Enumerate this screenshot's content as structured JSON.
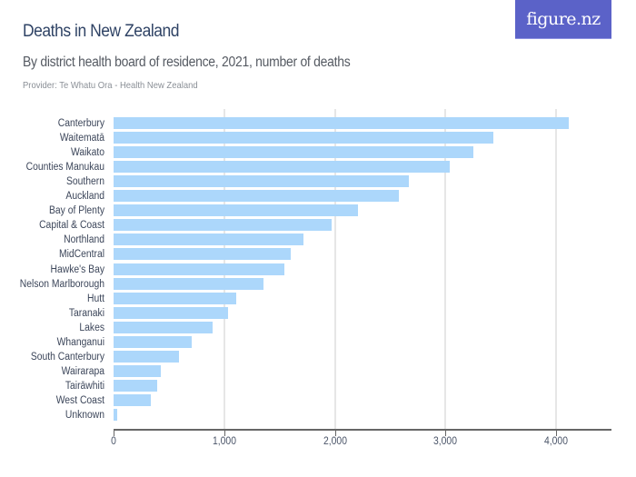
{
  "header": {
    "title": "Deaths in New Zealand",
    "subtitle": "By district health board of residence, 2021, number of deaths",
    "provider": "Provider: Te Whatu Ora - Health New Zealand",
    "logo": "figure.nz"
  },
  "colors": {
    "bar": "#acd7fb",
    "title": "#2f4365",
    "logo_bg": "#5b62c8"
  },
  "axis": {
    "ticks": [
      "0",
      "1,000",
      "2,000",
      "3,000",
      "4,000"
    ]
  },
  "chart_data": {
    "type": "bar",
    "orientation": "horizontal",
    "title": "Deaths in New Zealand",
    "subtitle": "By district health board of residence, 2021, number of deaths",
    "xlabel": "",
    "ylabel": "",
    "xlim": [
      0,
      4500
    ],
    "grid": true,
    "categories": [
      "Canterbury",
      "Waitematā",
      "Waikato",
      "Counties Manukau",
      "Southern",
      "Auckland",
      "Bay of Plenty",
      "Capital & Coast",
      "Northland",
      "MidCentral",
      "Hawke's Bay",
      "Nelson Marlborough",
      "Hutt",
      "Taranaki",
      "Lakes",
      "Whanganui",
      "South Canterbury",
      "Wairarapa",
      "Tairāwhiti",
      "West Coast",
      "Unknown"
    ],
    "values": [
      4110,
      3435,
      3250,
      3035,
      2665,
      2580,
      2210,
      1970,
      1720,
      1600,
      1545,
      1355,
      1105,
      1035,
      895,
      705,
      590,
      425,
      395,
      335,
      35
    ]
  }
}
